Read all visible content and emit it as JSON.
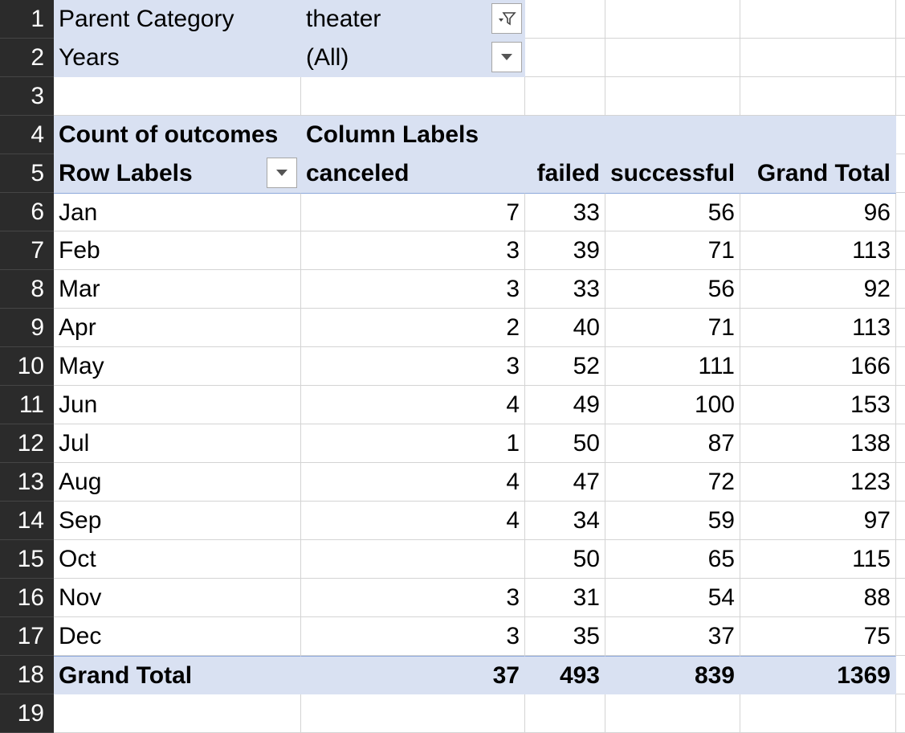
{
  "row_numbers": [
    "1",
    "2",
    "3",
    "4",
    "5",
    "6",
    "7",
    "8",
    "9",
    "10",
    "11",
    "12",
    "13",
    "14",
    "15",
    "16",
    "17",
    "18",
    "19"
  ],
  "filters": [
    {
      "label": "Parent Category",
      "value": "theater",
      "icon": "filter-dropdown-icon"
    },
    {
      "label": "Years",
      "value": "(All)",
      "icon": "chevron-down-icon"
    }
  ],
  "pivot": {
    "value_field": "Count of outcomes",
    "column_labels": "Column Labels",
    "row_labels": "Row Labels",
    "columns": [
      "canceled",
      "failed",
      "successful",
      "Grand Total"
    ],
    "rows": [
      {
        "label": "Jan",
        "canceled": "7",
        "failed": "33",
        "successful": "56",
        "total": "96"
      },
      {
        "label": "Feb",
        "canceled": "3",
        "failed": "39",
        "successful": "71",
        "total": "113"
      },
      {
        "label": "Mar",
        "canceled": "3",
        "failed": "33",
        "successful": "56",
        "total": "92"
      },
      {
        "label": "Apr",
        "canceled": "2",
        "failed": "40",
        "successful": "71",
        "total": "113"
      },
      {
        "label": "May",
        "canceled": "3",
        "failed": "52",
        "successful": "111",
        "total": "166"
      },
      {
        "label": "Jun",
        "canceled": "4",
        "failed": "49",
        "successful": "100",
        "total": "153"
      },
      {
        "label": "Jul",
        "canceled": "1",
        "failed": "50",
        "successful": "87",
        "total": "138"
      },
      {
        "label": "Aug",
        "canceled": "4",
        "failed": "47",
        "successful": "72",
        "total": "123"
      },
      {
        "label": "Sep",
        "canceled": "4",
        "failed": "34",
        "successful": "59",
        "total": "97"
      },
      {
        "label": "Oct",
        "canceled": "",
        "failed": "50",
        "successful": "65",
        "total": "115"
      },
      {
        "label": "Nov",
        "canceled": "3",
        "failed": "31",
        "successful": "54",
        "total": "88"
      },
      {
        "label": "Dec",
        "canceled": "3",
        "failed": "35",
        "successful": "37",
        "total": "75"
      }
    ],
    "grand_total": {
      "label": "Grand Total",
      "canceled": "37",
      "failed": "493",
      "successful": "839",
      "total": "1369"
    }
  },
  "colors": {
    "pivot_fill": "#d9e1f2",
    "row_header_bg": "#2b2b2b",
    "gridline": "#d4d4d4"
  }
}
